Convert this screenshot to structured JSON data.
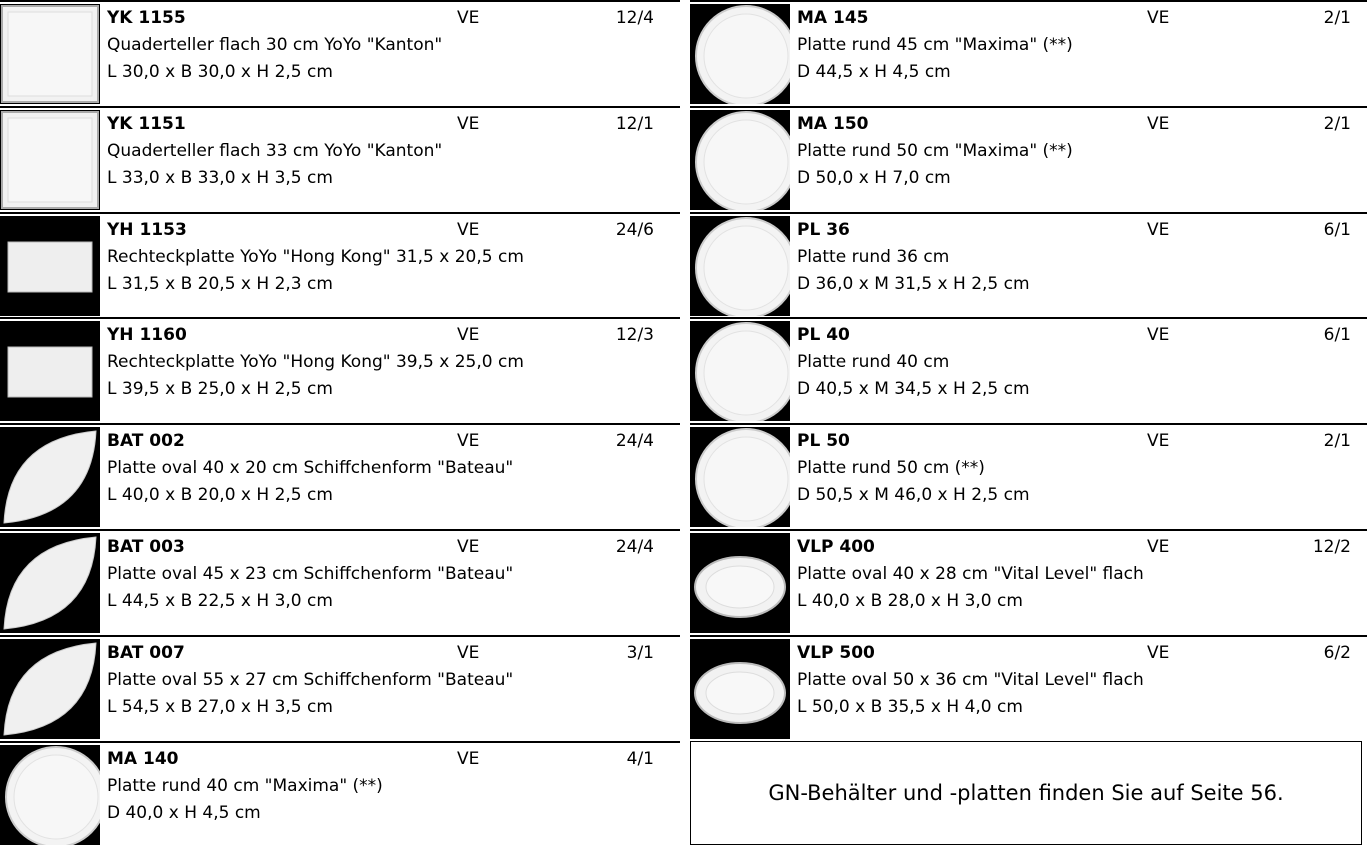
{
  "left": [
    {
      "code": "YK 1155",
      "ve": "VE",
      "pack": "12/4",
      "desc": "Quaderteller flach 30 cm YoYo \"Kanton\"",
      "dims": "L 30,0 x B 30,0 x H 2,5 cm"
    },
    {
      "code": "YK 1151",
      "ve": "VE",
      "pack": "12/1",
      "desc": "Quaderteller flach 33 cm YoYo \"Kanton\"",
      "dims": "L 33,0 x B 33,0 x H 3,5 cm"
    },
    {
      "code": "YH 1153",
      "ve": "VE",
      "pack": "24/6",
      "desc": "Rechteckplatte YoYo \"Hong Kong\" 31,5 x 20,5 cm",
      "dims": "L 31,5 x B 20,5 x H 2,3 cm"
    },
    {
      "code": "YH 1160",
      "ve": "VE",
      "pack": "12/3",
      "desc": "Rechteckplatte YoYo \"Hong Kong\" 39,5 x 25,0 cm",
      "dims": "L 39,5 x B 25,0 x H 2,5 cm"
    },
    {
      "code": "BAT 002",
      "ve": "VE",
      "pack": "24/4",
      "desc": "Platte oval 40 x 20 cm Schiffchenform \"Bateau\"",
      "dims": "L 40,0 x B 20,0 x H 2,5 cm"
    },
    {
      "code": "BAT 003",
      "ve": "VE",
      "pack": "24/4",
      "desc": "Platte oval 45 x 23 cm Schiffchenform \"Bateau\"",
      "dims": "L 44,5 x B 22,5 x H 3,0 cm"
    },
    {
      "code": "BAT 007",
      "ve": "VE",
      "pack": "3/1",
      "desc": "Platte oval 55 x 27 cm Schiffchenform \"Bateau\"",
      "dims": "L 54,5 x B 27,0 x H 3,5 cm"
    },
    {
      "code": "MA 140",
      "ve": "VE",
      "pack": "4/1",
      "desc": "Platte rund 40 cm \"Maxima\" (**)",
      "dims": "D 40,0 x H 4,5 cm"
    }
  ],
  "right": [
    {
      "code": "MA 145",
      "ve": "VE",
      "pack": "2/1",
      "desc": "Platte rund 45 cm \"Maxima\" (**)",
      "dims": "D 44,5 x H 4,5 cm"
    },
    {
      "code": "MA 150",
      "ve": "VE",
      "pack": "2/1",
      "desc": "Platte rund 50 cm \"Maxima\" (**)",
      "dims": "D 50,0 x H 7,0 cm"
    },
    {
      "code": "PL 36",
      "ve": "VE",
      "pack": "6/1",
      "desc": "Platte rund 36 cm",
      "dims": "D 36,0 x M 31,5 x H 2,5 cm"
    },
    {
      "code": "PL 40",
      "ve": "VE",
      "pack": "6/1",
      "desc": "Platte rund 40 cm",
      "dims": "D 40,5 x M 34,5 x H 2,5 cm"
    },
    {
      "code": "PL 50",
      "ve": "VE",
      "pack": "2/1",
      "desc": "Platte rund 50 cm (**)",
      "dims": "D 50,5 x M 46,0 x H 2,5 cm"
    },
    {
      "code": "VLP 400",
      "ve": "VE",
      "pack": "12/2",
      "desc": "Platte oval 40 x 28 cm \"Vital Level\" flach",
      "dims": "L 40,0 x B 28,0 x H 3,0 cm"
    },
    {
      "code": "VLP 500",
      "ve": "VE",
      "pack": "6/2",
      "desc": "Platte oval 50 x 36 cm \"Vital Level\" flach",
      "dims": "L 50,0 x B 35,5 x H 4,0 cm"
    }
  ],
  "note": "GN-Behälter und -platten finden Sie auf Seite 56."
}
